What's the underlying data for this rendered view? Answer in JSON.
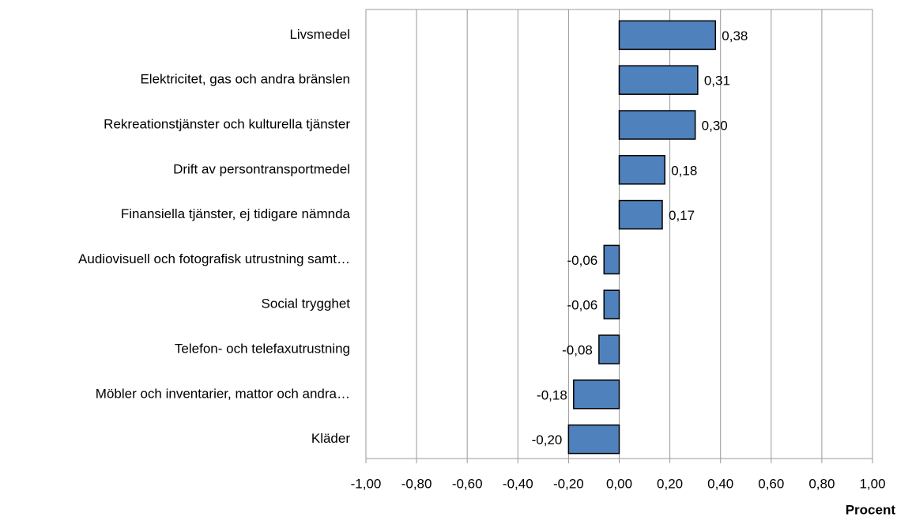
{
  "chart_data": {
    "type": "barh",
    "categories": [
      "Livsmedel",
      "Elektricitet, gas och andra bränslen",
      "Rekreationstjänster och kulturella tjänster",
      "Drift av persontransportmedel",
      "Finansiella tjänster, ej tidigare nämnda",
      "Audiovisuell och fotografisk utrustning samt…",
      "Social trygghet",
      "Telefon- och telefaxutrustning",
      "Möbler och inventarier, mattor och andra…",
      "Kläder"
    ],
    "values": [
      0.38,
      0.31,
      0.3,
      0.18,
      0.17,
      -0.06,
      -0.06,
      -0.08,
      -0.18,
      -0.2
    ],
    "value_labels": [
      "0,38",
      "0,31",
      "0,30",
      "0,18",
      "0,17",
      "-0,06",
      "-0,06",
      "-0,08",
      "-0,18",
      "-0,20"
    ],
    "color": "#4f81bd",
    "xlabel": "Procent",
    "xlim": [
      -1,
      1
    ],
    "xticks": [
      {
        "value": -1,
        "label": "-1,00"
      },
      {
        "value": -0.8,
        "label": "-0,80"
      },
      {
        "value": -0.6,
        "label": "-0,60"
      },
      {
        "value": -0.4,
        "label": "-0,40"
      },
      {
        "value": -0.2,
        "label": "-0,20"
      },
      {
        "value": 0,
        "label": "0,00"
      },
      {
        "value": 0.2,
        "label": "0,20"
      },
      {
        "value": 0.4,
        "label": "0,40"
      },
      {
        "value": 0.6,
        "label": "0,60"
      },
      {
        "value": 0.8,
        "label": "0,80"
      },
      {
        "value": 1,
        "label": "1,00"
      }
    ],
    "grid": true
  }
}
